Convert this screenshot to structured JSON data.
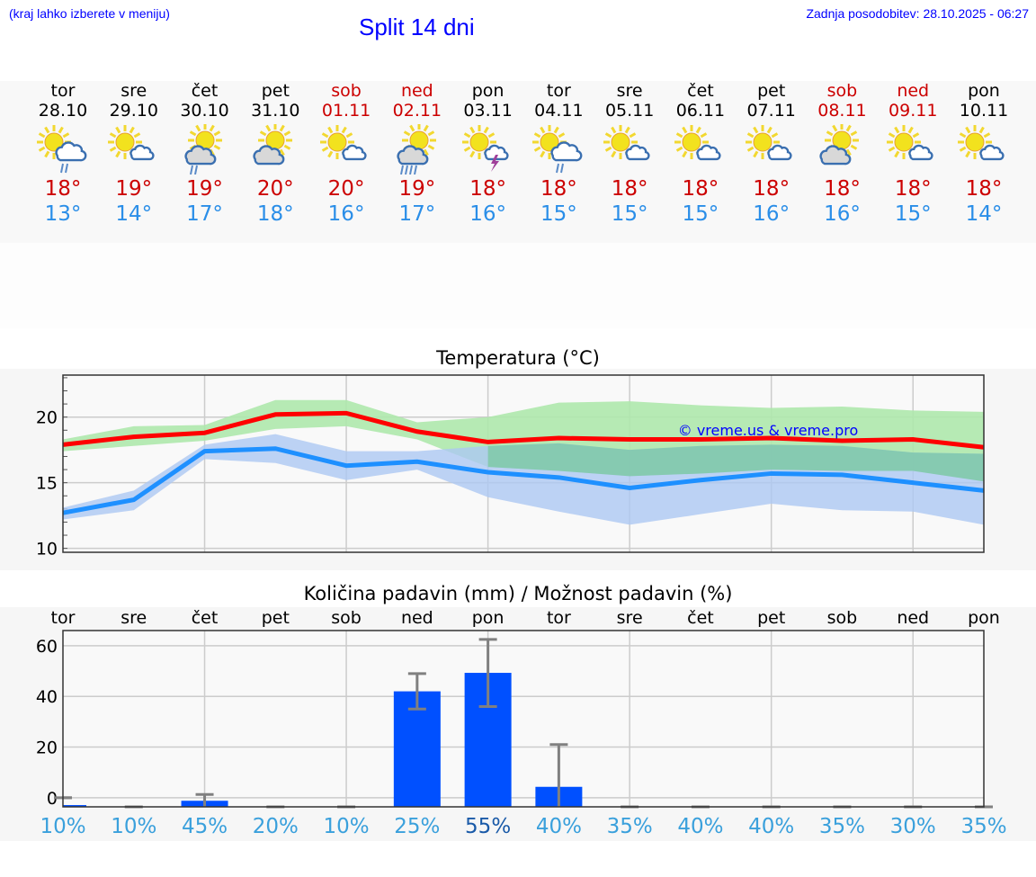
{
  "header": {
    "hint": "(kraj lahko izberete v meniju)",
    "title": "Split 14 dni",
    "updated": "Zadnja posodobitev: 28.10.2025 - 06:27"
  },
  "days": [
    {
      "wd": "tor",
      "date": "28.10",
      "max": "18°",
      "min": "13°",
      "icon": "sun-cloud-rain-icon",
      "weekend": false
    },
    {
      "wd": "sre",
      "date": "29.10",
      "max": "19°",
      "min": "14°",
      "icon": "sun-small-cloud-icon",
      "weekend": false
    },
    {
      "wd": "čet",
      "date": "30.10",
      "max": "19°",
      "min": "17°",
      "icon": "cloud-sun-rain-icon",
      "weekend": false
    },
    {
      "wd": "pet",
      "date": "31.10",
      "max": "20°",
      "min": "18°",
      "icon": "sun-gray-cloud-icon",
      "weekend": false
    },
    {
      "wd": "sob",
      "date": "01.11",
      "max": "20°",
      "min": "16°",
      "icon": "sun-small-cloud-icon",
      "weekend": true
    },
    {
      "wd": "ned",
      "date": "02.11",
      "max": "19°",
      "min": "17°",
      "icon": "cloud-heavy-rain-icon",
      "weekend": true
    },
    {
      "wd": "pon",
      "date": "03.11",
      "max": "18°",
      "min": "16°",
      "icon": "sun-thunder-icon",
      "weekend": false
    },
    {
      "wd": "tor",
      "date": "04.11",
      "max": "18°",
      "min": "15°",
      "icon": "sun-cloud-rain-icon",
      "weekend": false
    },
    {
      "wd": "sre",
      "date": "05.11",
      "max": "18°",
      "min": "15°",
      "icon": "sun-small-cloud-icon",
      "weekend": false
    },
    {
      "wd": "čet",
      "date": "06.11",
      "max": "18°",
      "min": "15°",
      "icon": "sun-small-cloud-icon",
      "weekend": false
    },
    {
      "wd": "pet",
      "date": "07.11",
      "max": "18°",
      "min": "16°",
      "icon": "sun-small-cloud-icon",
      "weekend": false
    },
    {
      "wd": "sob",
      "date": "08.11",
      "max": "18°",
      "min": "16°",
      "icon": "sun-gray-cloud-icon",
      "weekend": true
    },
    {
      "wd": "ned",
      "date": "09.11",
      "max": "18°",
      "min": "15°",
      "icon": "sun-small-cloud-icon",
      "weekend": true
    },
    {
      "wd": "pon",
      "date": "10.11",
      "max": "18°",
      "min": "14°",
      "icon": "sun-small-cloud-icon",
      "weekend": false
    }
  ],
  "colors": {
    "max": "#ff0000",
    "min": "#1e90ff",
    "maxBand": "#aee8ac",
    "minBand": "#adc8f2",
    "overlap": "#7cc8a4",
    "bar": "#0050ff",
    "err": "#808080"
  },
  "chart_data": [
    {
      "type": "line",
      "title": "Temperatura (°C)",
      "ylim": [
        9.7,
        23.2
      ],
      "yticks": [
        10,
        15,
        20
      ],
      "grid": true,
      "watermark": "© vreme.us & vreme.pro",
      "x": [
        "28.10",
        "29.10",
        "30.10",
        "31.10",
        "01.11",
        "02.11",
        "03.11",
        "04.11",
        "05.11",
        "06.11",
        "07.11",
        "08.11",
        "09.11",
        "10.11"
      ],
      "series": [
        {
          "name": "max",
          "values": [
            17.9,
            18.5,
            18.8,
            20.2,
            20.3,
            18.9,
            18.1,
            18.4,
            18.3,
            18.3,
            18.4,
            18.2,
            18.3,
            17.7
          ],
          "band_low": [
            17.4,
            17.8,
            18.2,
            19.1,
            19.3,
            18.3,
            16.2,
            15.9,
            15.5,
            15.7,
            16.0,
            15.9,
            15.9,
            15.1
          ],
          "band_high": [
            18.3,
            19.3,
            19.4,
            21.3,
            21.3,
            19.6,
            20.0,
            21.1,
            21.2,
            20.9,
            20.7,
            20.8,
            20.5,
            20.4
          ]
        },
        {
          "name": "min",
          "values": [
            12.7,
            13.7,
            17.4,
            17.6,
            16.3,
            16.6,
            15.8,
            15.4,
            14.6,
            15.2,
            15.7,
            15.6,
            15.0,
            14.4
          ],
          "band_low": [
            12.2,
            12.9,
            16.8,
            16.5,
            15.2,
            16.0,
            13.9,
            12.8,
            11.8,
            12.6,
            13.4,
            12.9,
            12.8,
            11.8
          ],
          "band_high": [
            13.1,
            14.4,
            17.9,
            18.7,
            17.4,
            17.4,
            17.8,
            18.0,
            17.5,
            17.8,
            17.9,
            17.8,
            17.3,
            17.2
          ]
        }
      ]
    },
    {
      "type": "bar",
      "title": "Količina padavin (mm) / Možnost padavin (%)",
      "ylim": [
        -3.6,
        66
      ],
      "yticks": [
        0,
        20,
        40,
        60
      ],
      "grid": true,
      "categories": [
        "tor",
        "sre",
        "čet",
        "pet",
        "sob",
        "ned",
        "pon",
        "tor",
        "sre",
        "čet",
        "pet",
        "sob",
        "ned",
        "pon"
      ],
      "values": [
        -2.9,
        -3.6,
        -1.2,
        -3.6,
        -3.6,
        42,
        49.3,
        4.3,
        -3.6,
        -3.6,
        -3.6,
        -3.6,
        -3.6,
        -3.6
      ],
      "err_low": [
        0,
        -3.6,
        -3.6,
        -3.6,
        -3.6,
        35,
        36,
        -3.6,
        -3.6,
        -3.6,
        -3.6,
        -3.6,
        -3.6,
        -3.6
      ],
      "err_high": [
        0,
        -3.6,
        1.3,
        -3.6,
        -3.6,
        49,
        62.5,
        21,
        -3.6,
        -3.6,
        -3.6,
        -3.6,
        -3.6,
        -3.6
      ],
      "probability": [
        "10%",
        "10%",
        "45%",
        "20%",
        "10%",
        "25%",
        "55%",
        "40%",
        "35%",
        "40%",
        "40%",
        "35%",
        "30%",
        "35%"
      ],
      "highlight_index": 6
    }
  ]
}
